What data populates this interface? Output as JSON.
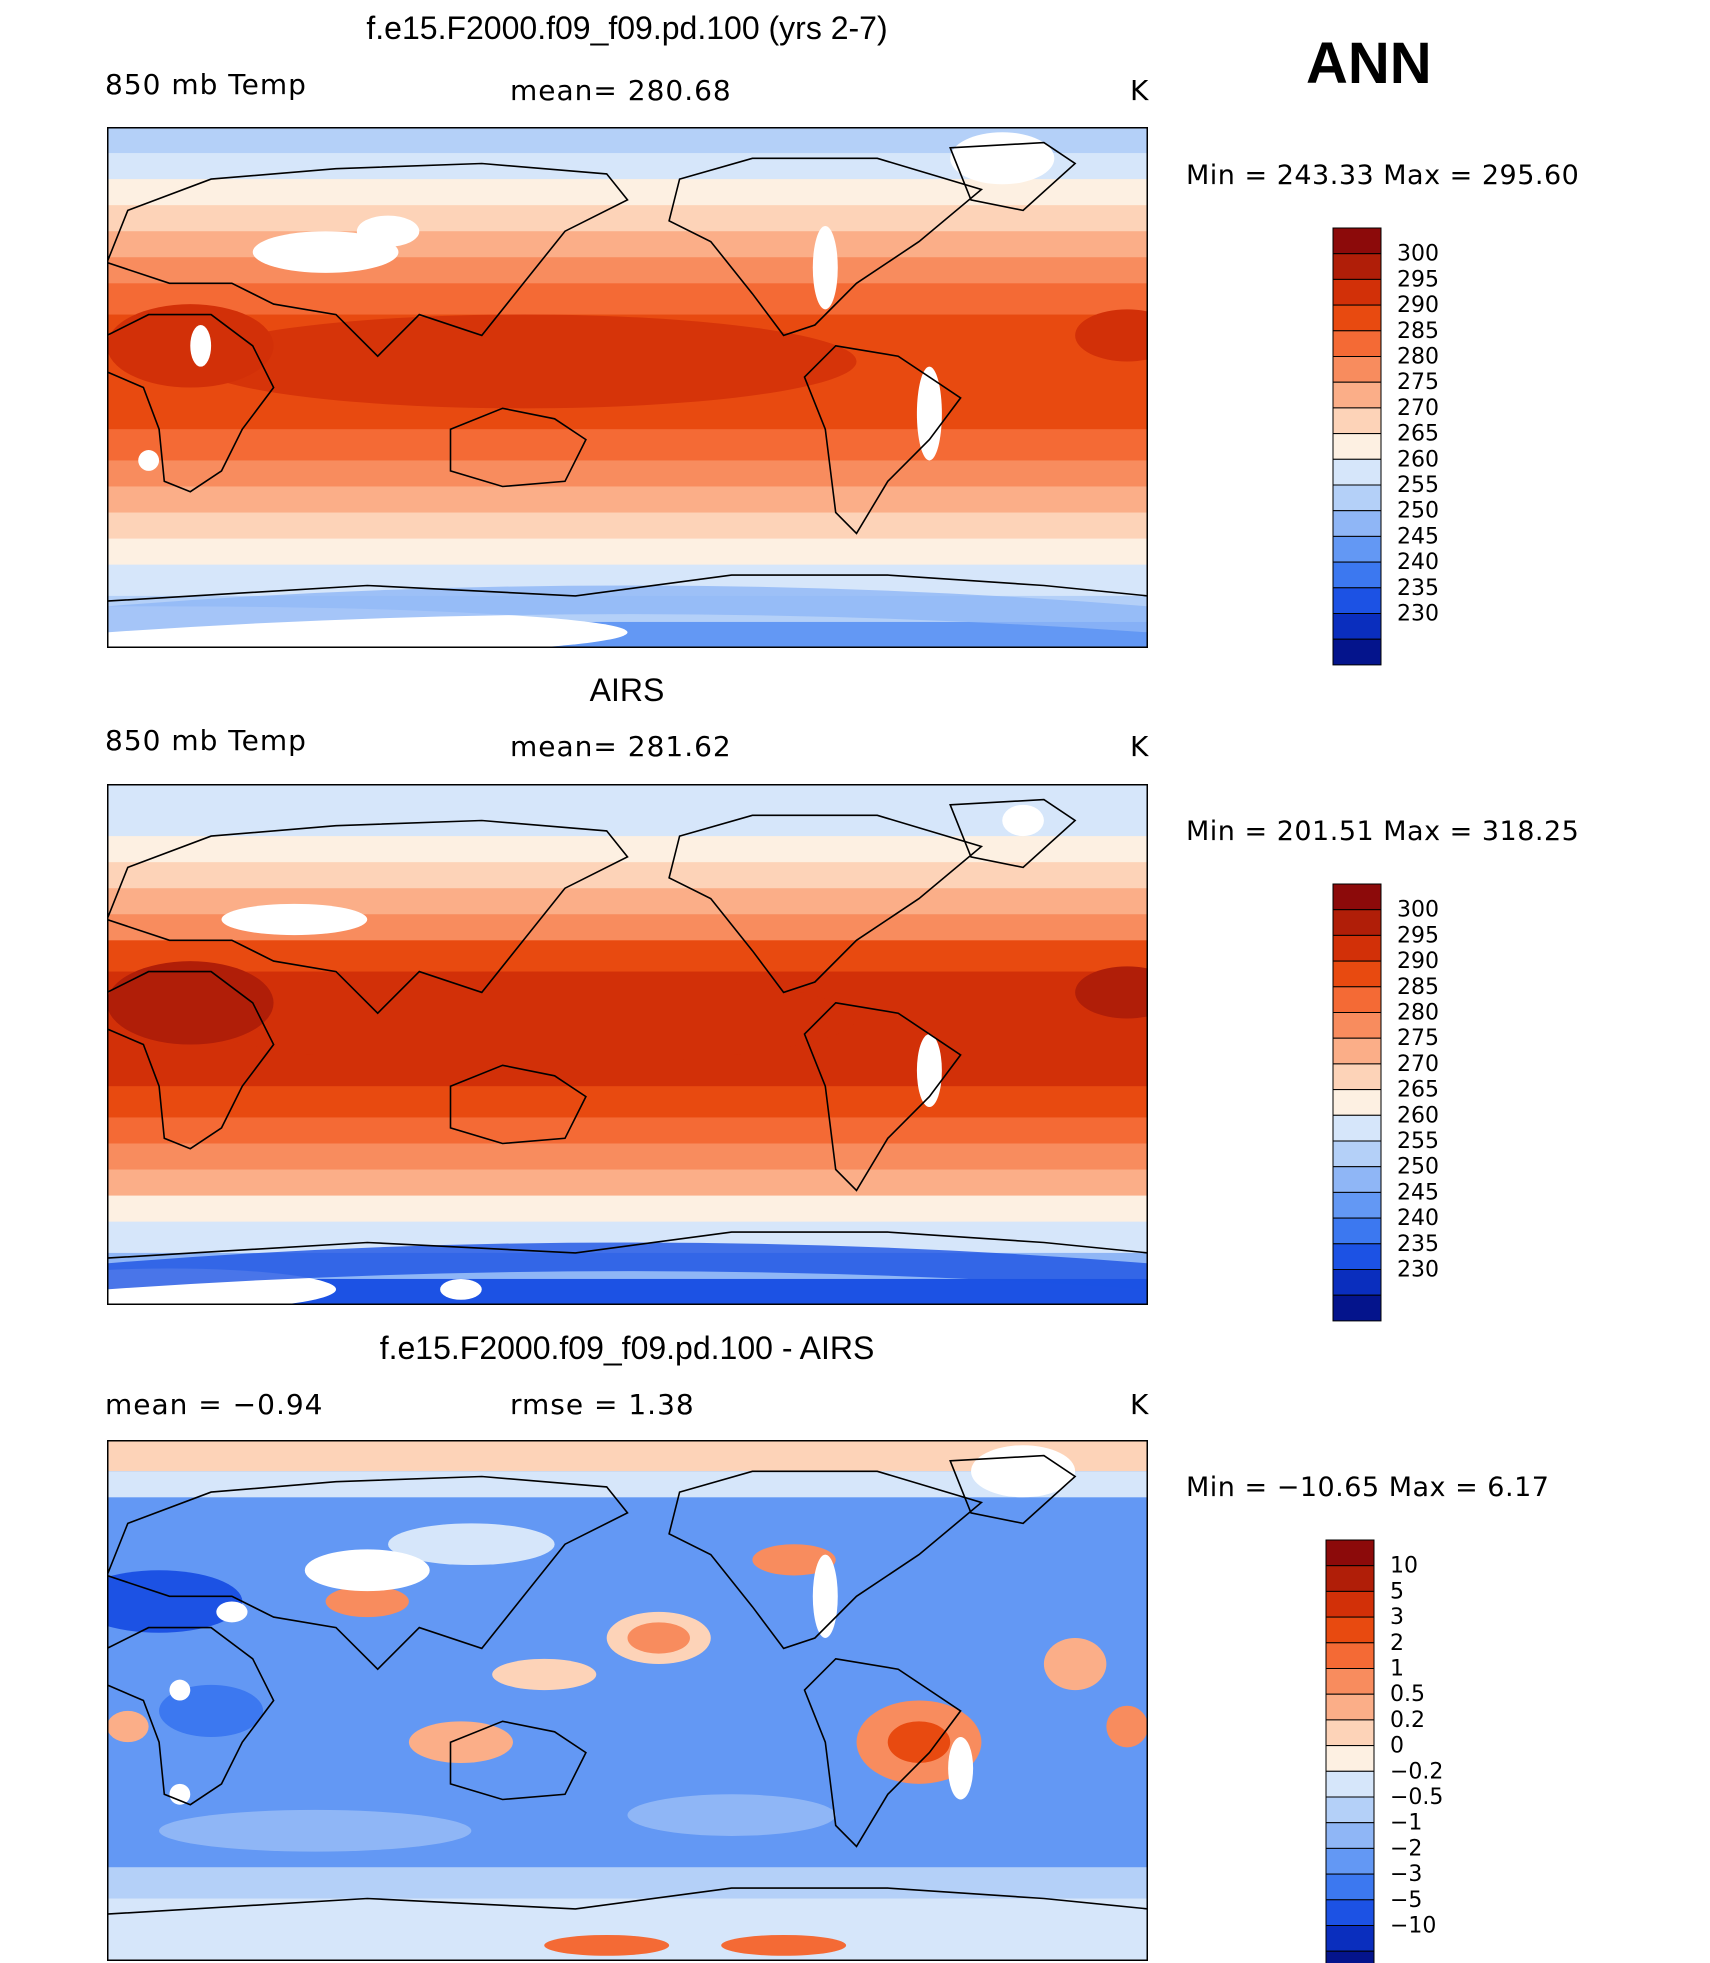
{
  "season": "ANN",
  "panels": [
    {
      "id": "model",
      "title": "f.e15.F2000.f09_f09.pd.100 (yrs 2-7)",
      "left_label": "850 mb Temp",
      "center_label": "mean=  280.68",
      "units": "K",
      "minmax": "Min  =  243.33  Max  =  295.60"
    },
    {
      "id": "obs",
      "title": "AIRS",
      "left_label": "850 mb Temp",
      "center_label": "mean=  281.62",
      "units": "K",
      "minmax": "Min  =  201.51  Max  =  318.25"
    },
    {
      "id": "diff",
      "title": "f.e15.F2000.f09_f09.pd.100 - AIRS",
      "left_label": "mean  =    −0.94",
      "center_label": "rmse  =      1.38",
      "units": "K",
      "minmax": "Min  =  −10.65  Max  =       6.17"
    }
  ],
  "colorbars": {
    "temperature": {
      "levels": [
        "300",
        "295",
        "290",
        "285",
        "280",
        "275",
        "270",
        "265",
        "260",
        "255",
        "250",
        "245",
        "240",
        "235",
        "230"
      ],
      "colors": [
        "#8c0a0a",
        "#b01e08",
        "#d23008",
        "#e84a10",
        "#f46a35",
        "#f88c5e",
        "#fbae88",
        "#fdd3b8",
        "#fdf0e2",
        "#d6e6fa",
        "#b4d0f8",
        "#8fb6f6",
        "#6398f4",
        "#3c78f0",
        "#1c52e4",
        "#0a2ebe",
        "#04148c"
      ]
    },
    "difference": {
      "levels": [
        "10",
        "5",
        "3",
        "2",
        "1",
        "0.5",
        "0.2",
        "0",
        "−0.2",
        "−0.5",
        "−1",
        "−2",
        "−3",
        "−5",
        "−10"
      ],
      "colors": [
        "#8c0a0a",
        "#b01e08",
        "#d23008",
        "#e84a10",
        "#f46a35",
        "#f88c5e",
        "#fbae88",
        "#fdd3b8",
        "#fdf0e2",
        "#d6e6fa",
        "#b4d0f8",
        "#8fb6f6",
        "#6398f4",
        "#3c78f0",
        "#1c52e4",
        "#0a2ebe",
        "#04148c"
      ]
    }
  },
  "chart_data": [
    {
      "type": "heatmap",
      "title": "f.e15.F2000.f09_f09.pd.100 (yrs 2-7)",
      "variable": "850 mb Temp",
      "units": "K",
      "mean": 280.68,
      "min": 243.33,
      "max": 295.6,
      "xlim": [
        0,
        360
      ],
      "ylim": [
        -90,
        90
      ],
      "contour_levels": [
        230,
        235,
        240,
        245,
        250,
        255,
        260,
        265,
        270,
        275,
        280,
        285,
        290,
        295,
        300
      ]
    },
    {
      "type": "heatmap",
      "title": "AIRS",
      "variable": "850 mb Temp",
      "units": "K",
      "mean": 281.62,
      "min": 201.51,
      "max": 318.25,
      "xlim": [
        0,
        360
      ],
      "ylim": [
        -90,
        90
      ],
      "contour_levels": [
        230,
        235,
        240,
        245,
        250,
        255,
        260,
        265,
        270,
        275,
        280,
        285,
        290,
        295,
        300
      ]
    },
    {
      "type": "heatmap",
      "title": "f.e15.F2000.f09_f09.pd.100 - AIRS",
      "units": "K",
      "mean": -0.94,
      "rmse": 1.38,
      "min": -10.65,
      "max": 6.17,
      "xlim": [
        0,
        360
      ],
      "ylim": [
        -90,
        90
      ],
      "contour_levels": [
        -10,
        -5,
        -3,
        -2,
        -1,
        -0.5,
        -0.2,
        0,
        0.2,
        0.5,
        1,
        2,
        3,
        5,
        10
      ]
    }
  ]
}
